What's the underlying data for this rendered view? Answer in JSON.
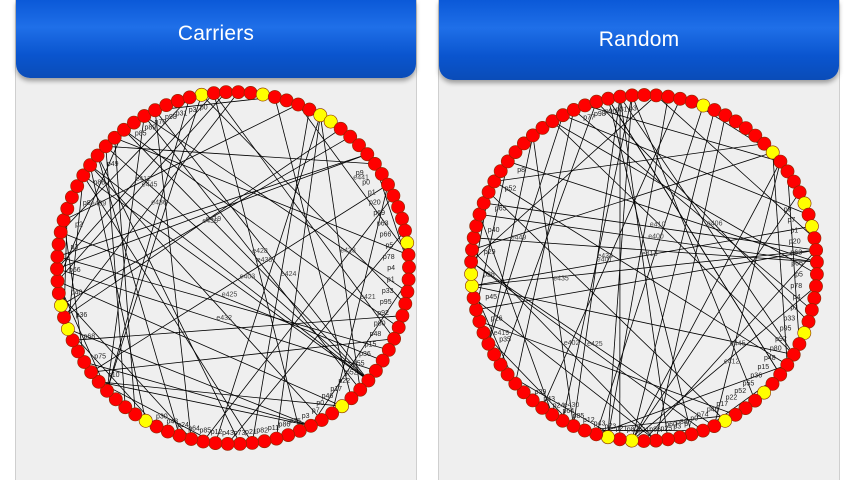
{
  "panels": [
    {
      "title": "Carriers",
      "node_count": 90,
      "highlight": [
        0,
        5,
        10,
        11,
        23,
        38,
        55,
        65,
        67
      ],
      "edge_count": 64,
      "edge_labels": [
        "e438",
        "e436",
        "e428",
        "e419",
        "e412",
        "e409",
        "e421",
        "e430",
        "e423",
        "e425",
        "e432",
        "e441",
        "e445",
        "e403",
        "e424"
      ],
      "node_labels_right": [
        "p9",
        "p0",
        "p1",
        "p20",
        "p69",
        "p63",
        "p66",
        "p5",
        "p78",
        "p4",
        "p1",
        "p33",
        "p95",
        "p92",
        "p80",
        "p48",
        "p15",
        "p36",
        "p55",
        "p52",
        "p22",
        "p17",
        "p46",
        "p0"
      ],
      "node_labels_bottom": [
        "p7",
        "p3",
        "p25",
        "p86",
        "p11",
        "p82",
        "p21",
        "p73",
        "p43",
        "p12",
        "p85",
        "p64",
        "p24",
        "p43",
        "p30"
      ],
      "node_labels_left": [
        "p10",
        "p75",
        "p68",
        "p36",
        "p40",
        "p66",
        "p3",
        "p2",
        "p8",
        "p88",
        "p49"
      ],
      "node_labels_top": [
        "p85",
        "p89",
        "p70",
        "p98",
        "p31",
        "p3",
        "p0"
      ]
    },
    {
      "title": "Random",
      "node_count": 90,
      "highlight": [
        4,
        11,
        16,
        18,
        27,
        33,
        37,
        45,
        47,
        65,
        66
      ],
      "edge_count": 64,
      "edge_labels": [
        "e430",
        "e402",
        "e434",
        "e400",
        "e419",
        "e406",
        "e435",
        "e410",
        "e449",
        "e413",
        "e425",
        "e423",
        "e401",
        "e445",
        "e412"
      ],
      "node_labels_right": [
        "p9",
        "p7",
        "p1",
        "p20",
        "p63",
        "p66",
        "p5",
        "p78",
        "p4",
        "p1",
        "p33",
        "p95",
        "p92",
        "p80",
        "p48",
        "p15",
        "p36",
        "p55",
        "p52",
        "p22",
        "p17",
        "p46",
        "p74",
        "p0",
        "p88",
        "p60"
      ],
      "node_labels_bottom": [
        "p7",
        "p3",
        "p25",
        "p86",
        "p11",
        "p82",
        "p21",
        "p73",
        "p43",
        "p12",
        "p85",
        "p64",
        "p24",
        "p43",
        "p39"
      ],
      "node_labels_left": [
        "p35",
        "p26",
        "p45",
        "p28",
        "p29",
        "p40",
        "p65",
        "p52",
        "p8"
      ],
      "node_labels_top": [
        "p77",
        "p98",
        "p90",
        "p31",
        "p3"
      ]
    }
  ],
  "colors": {
    "node": "#ff0000",
    "highlight": "#ffff00",
    "edge": "#000000",
    "header": "#0b59d8"
  }
}
